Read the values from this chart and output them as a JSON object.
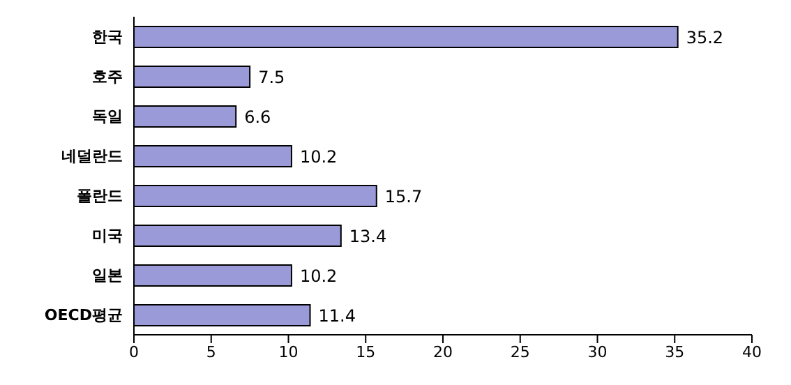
{
  "chart_data": {
    "type": "bar",
    "orientation": "horizontal",
    "categories": [
      "한국",
      "호주",
      "독일",
      "네덜란드",
      "폴란드",
      "미국",
      "일본",
      "OECD평균"
    ],
    "values": [
      35.2,
      7.5,
      6.6,
      10.2,
      15.7,
      13.4,
      10.2,
      11.4
    ],
    "color": "#9a9ad8",
    "xlim": [
      0,
      40
    ],
    "xticks": [
      0,
      5,
      10,
      15,
      20,
      25,
      30,
      35,
      40
    ],
    "data_labels": true,
    "grid": false
  }
}
